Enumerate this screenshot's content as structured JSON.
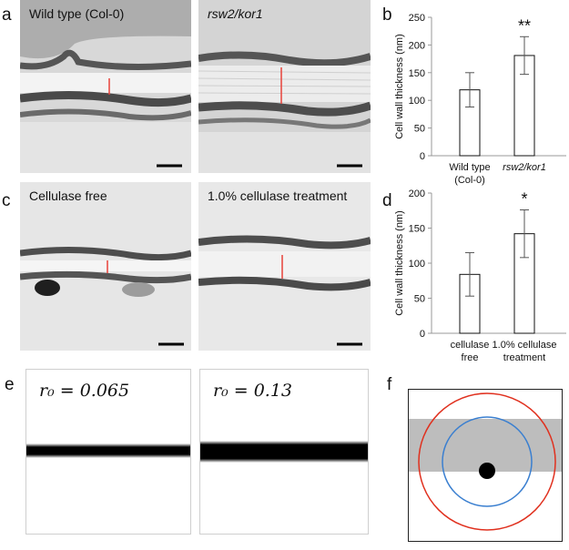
{
  "panel_labels": {
    "a": "a",
    "b": "b",
    "c": "c",
    "d": "d",
    "e": "e",
    "f": "f"
  },
  "micrographs": [
    {
      "id": "a1",
      "label": "Wild type (Col-0)",
      "italic": false
    },
    {
      "id": "a2",
      "label": "rsw2/kor1",
      "italic": true
    },
    {
      "id": "c1",
      "label": "Cellulase free",
      "italic": false
    },
    {
      "id": "c2",
      "label": "1.0% cellulase treatment",
      "italic": false
    }
  ],
  "simulations": [
    {
      "id": "e1",
      "label": "r₀ = 0.065"
    },
    {
      "id": "e2",
      "label": "r₀ = 0.13"
    }
  ],
  "chart_data": [
    {
      "id": "b",
      "type": "bar",
      "ylabel": "Cell wall thickness (nm)",
      "ylim": [
        0,
        250
      ],
      "yticks": [
        0,
        50,
        100,
        150,
        200,
        250
      ],
      "categories": [
        [
          "Wild type",
          "(Col-0)"
        ],
        [
          "rsw2/kor1"
        ]
      ],
      "category_italic": [
        false,
        true
      ],
      "values": [
        119,
        181
      ],
      "errors": [
        31,
        34
      ],
      "significance": [
        "",
        "**"
      ]
    },
    {
      "id": "d",
      "type": "bar",
      "ylabel": "Cell wall thickness (nm)",
      "ylim": [
        0,
        200
      ],
      "yticks": [
        0,
        50,
        100,
        150,
        200
      ],
      "categories": [
        [
          "cellulase",
          "free"
        ],
        [
          "1.0% cellulase",
          "treatment"
        ]
      ],
      "category_italic": [
        false,
        false
      ],
      "values": [
        84,
        142
      ],
      "errors": [
        31,
        34
      ],
      "significance": [
        "",
        "*"
      ]
    }
  ],
  "colors": {
    "marker_line": "#e8423a",
    "outer_circle": "#e0301e",
    "inner_circle": "#3a7fd0",
    "band": "#bdbdbd"
  }
}
